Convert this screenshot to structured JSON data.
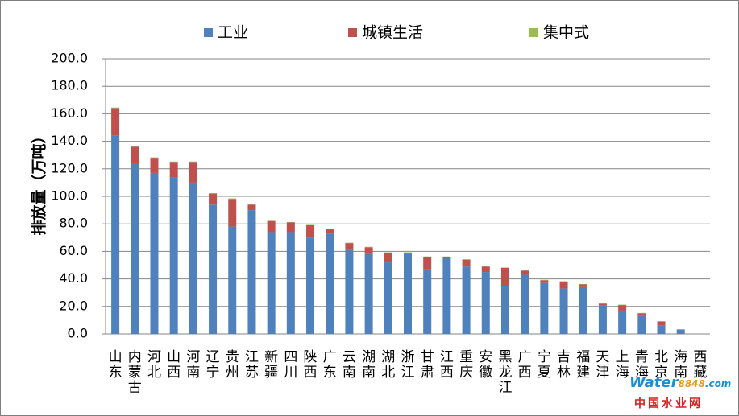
{
  "chart_data": {
    "type": "bar",
    "stacked": true,
    "categories": [
      "山东",
      "内蒙古",
      "河北",
      "山西",
      "河南",
      "辽宁",
      "贵州",
      "江苏",
      "新疆",
      "四川",
      "陕西",
      "广东",
      "云南",
      "湖南",
      "湖北",
      "浙江",
      "甘肃",
      "江西",
      "重庆",
      "安徽",
      "黑龙江",
      "广西",
      "宁夏",
      "吉林",
      "福建",
      "天津",
      "上海",
      "青海",
      "北京",
      "海南",
      "西藏"
    ],
    "series": [
      {
        "name": "工业",
        "color": "#4f81bd",
        "values": [
          144,
          124,
          117,
          114,
          110,
          94,
          78,
          90,
          74,
          74,
          70,
          73,
          61,
          58,
          52,
          58,
          47,
          55,
          49,
          45,
          35,
          43,
          37,
          33,
          34,
          21,
          17,
          13,
          6,
          3,
          0
        ]
      },
      {
        "name": "城镇生活",
        "color": "#c0504d",
        "values": [
          20,
          12,
          11,
          11,
          15,
          8,
          20,
          4,
          8,
          7,
          9,
          3,
          5,
          5,
          7,
          1,
          9,
          1,
          5,
          4,
          13,
          3,
          2,
          5,
          2,
          1,
          4,
          2,
          3,
          0.3,
          0
        ]
      },
      {
        "name": "集中式",
        "color": "#9bbb59",
        "values": [
          0.5,
          0.3,
          0.3,
          0.3,
          0.3,
          0.3,
          0.5,
          0.3,
          0.3,
          0.3,
          0.3,
          0.3,
          0.3,
          0.3,
          0.3,
          0.3,
          0.3,
          0.3,
          0.3,
          0.3,
          0.3,
          0.3,
          0.3,
          0.3,
          0.3,
          0.3,
          0.3,
          0.3,
          0.3,
          0.1,
          0
        ]
      }
    ],
    "ylabel": "排放量（万吨）",
    "ylim": [
      0,
      200
    ],
    "yticks": [
      "200.0",
      "180.0",
      "160.0",
      "140.0",
      "120.0",
      "100.0",
      "80.0",
      "60.0",
      "40.0",
      "20.0",
      "0.0"
    ],
    "grid": true,
    "legend_position": "top"
  },
  "watermark": {
    "brand_prefix": "W",
    "brand_middle": "ater",
    "brand_number": "8848",
    "brand_suffix": ".com",
    "site_name": "中国水业网"
  }
}
